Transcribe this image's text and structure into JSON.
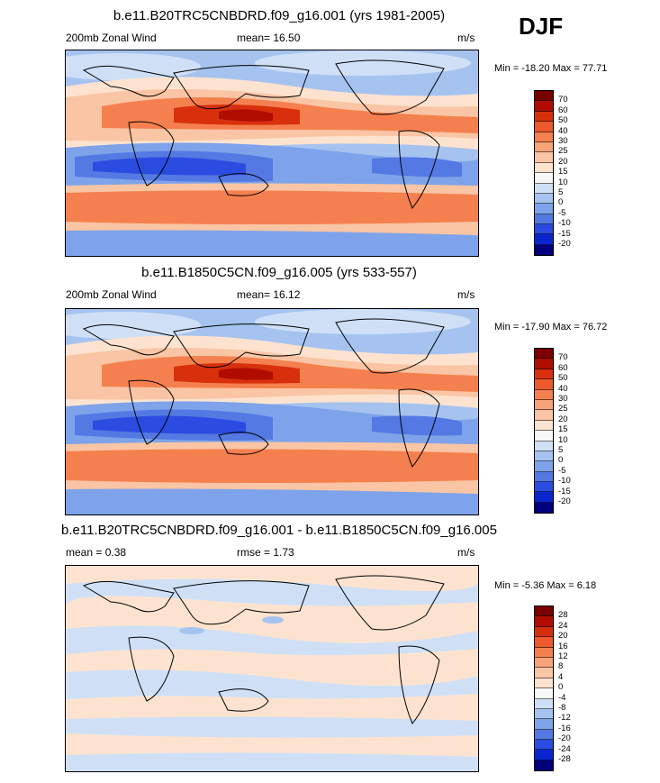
{
  "season": "DJF",
  "units": "m/s",
  "panels": [
    {
      "title": "b.e11.B20TRC5CNBDRD.f09_g16.001 (yrs 1981-2005)",
      "left_label": "200mb Zonal Wind",
      "stat_label": "mean=  16.50",
      "minmax": "Min = -18.20 Max =  77.71",
      "colorbar": {
        "labels": [
          "70",
          "60",
          "50",
          "40",
          "30",
          "25",
          "20",
          "15",
          "10",
          "5",
          "0",
          "-5",
          "-10",
          "-15",
          "-20"
        ],
        "colors": [
          "#7a0000",
          "#b00d00",
          "#d8300c",
          "#ec5a2d",
          "#f5804f",
          "#f6a37a",
          "#f9c5a4",
          "#fde3cf",
          "#f7f7f7",
          "#cfe0f6",
          "#a6c3f0",
          "#7ea3ea",
          "#5479e3",
          "#2b4ce0",
          "#0a25d0",
          "#02007a"
        ]
      }
    },
    {
      "title": "b.e11.B1850C5CN.f09_g16.005 (yrs 533-557)",
      "left_label": "200mb Zonal Wind",
      "stat_label": "mean=  16.12",
      "minmax": "Min = -17.90 Max =  76.72",
      "colorbar": {
        "labels": [
          "70",
          "60",
          "50",
          "40",
          "30",
          "25",
          "20",
          "15",
          "10",
          "5",
          "0",
          "-5",
          "-10",
          "-15",
          "-20"
        ],
        "colors": [
          "#7a0000",
          "#b00d00",
          "#d8300c",
          "#ec5a2d",
          "#f5804f",
          "#f6a37a",
          "#f9c5a4",
          "#fde3cf",
          "#f7f7f7",
          "#cfe0f6",
          "#a6c3f0",
          "#7ea3ea",
          "#5479e3",
          "#2b4ce0",
          "#0a25d0",
          "#02007a"
        ]
      }
    },
    {
      "title": "b.e11.B20TRC5CNBDRD.f09_g16.001 - b.e11.B1850C5CN.f09_g16.005",
      "left_label": "mean =  0.38",
      "stat_label": "rmse =  1.73",
      "minmax": "Min =  -5.36 Max =   6.18",
      "colorbar": {
        "labels": [
          "28",
          "24",
          "20",
          "16",
          "12",
          "8",
          "4",
          "0",
          "-4",
          "-8",
          "-12",
          "-16",
          "-20",
          "-24",
          "-28"
        ],
        "colors": [
          "#7a0000",
          "#b00d00",
          "#d8300c",
          "#ec5a2d",
          "#f5804f",
          "#f6a37a",
          "#f9c5a4",
          "#fde3cf",
          "#f7f7f7",
          "#cfe0f6",
          "#a6c3f0",
          "#7ea3ea",
          "#5479e3",
          "#2b4ce0",
          "#0a25d0",
          "#02007a"
        ]
      }
    }
  ]
}
